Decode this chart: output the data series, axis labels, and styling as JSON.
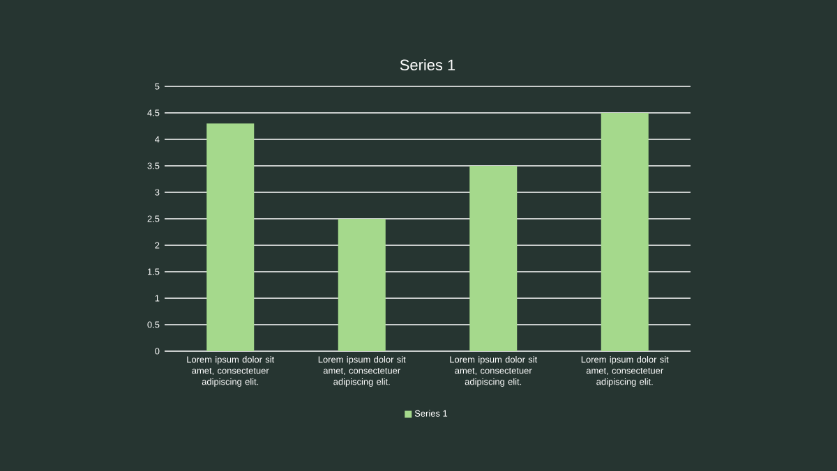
{
  "chart_data": {
    "type": "bar",
    "title": "Series 1",
    "categories": [
      "Lorem ipsum dolor sit amet, consectetuer adipiscing elit.",
      "Lorem ipsum dolor sit amet, consectetuer adipiscing elit.",
      "Lorem ipsum dolor sit amet, consectetuer adipiscing elit.",
      "Lorem ipsum dolor sit amet, consectetuer adipiscing elit."
    ],
    "series": [
      {
        "name": "Series 1",
        "color": "#a5d98c",
        "values": [
          4.3,
          2.5,
          3.5,
          4.5
        ]
      }
    ],
    "ylim": [
      0,
      5
    ],
    "yticks": [
      0,
      0.5,
      1,
      1.5,
      2,
      2.5,
      3,
      3.5,
      4,
      4.5,
      5
    ],
    "grid": "y",
    "legend": "bottom"
  }
}
